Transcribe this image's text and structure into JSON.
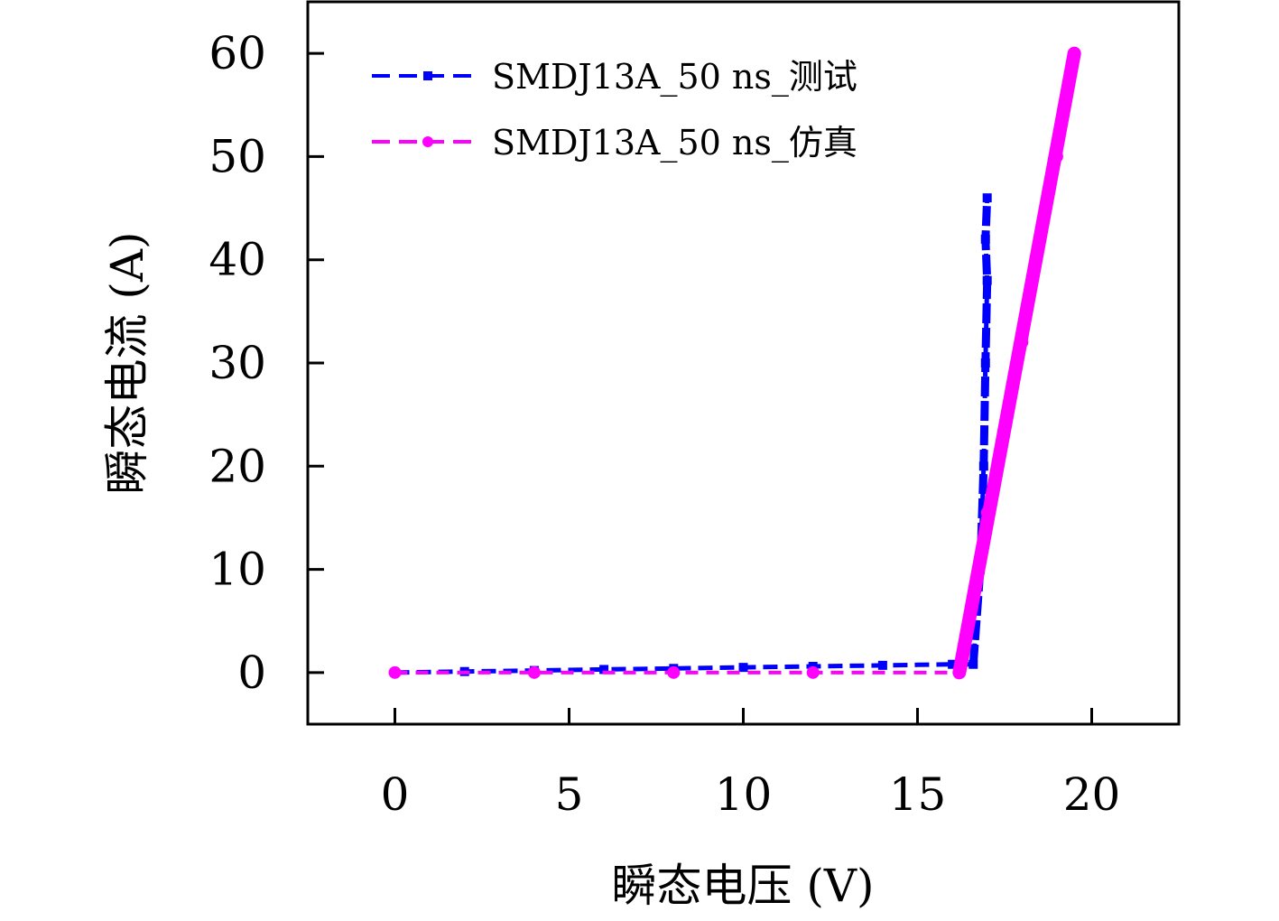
{
  "chart_data": {
    "type": "line",
    "title": "",
    "xlabel": "瞬态电压 (V)",
    "ylabel": "瞬态电流 (A)",
    "xlim": [
      -2.5,
      22.5
    ],
    "ylim": [
      -5,
      65
    ],
    "xticks": [
      0,
      5,
      10,
      15,
      20
    ],
    "yticks": [
      0,
      10,
      20,
      30,
      40,
      50,
      60
    ],
    "grid": false,
    "legend_position": "top-left",
    "series": [
      {
        "name": "SMDJ13A_50 ns_测试",
        "color": "#0000ff",
        "line_style": "dashed",
        "marker": "square",
        "x": [
          0,
          2,
          4,
          6,
          8,
          10,
          12,
          14,
          16,
          16.6,
          16.8,
          16.9,
          16.95,
          17.0,
          16.95,
          17.0
        ],
        "y": [
          0,
          0.1,
          0.2,
          0.3,
          0.4,
          0.5,
          0.6,
          0.7,
          0.8,
          0.8,
          10,
          20,
          30,
          38,
          42,
          46
        ]
      },
      {
        "name": "SMDJ13A_50 ns_仿真",
        "color": "#ff00ff",
        "line_style": "dashed",
        "marker": "circle",
        "x": [
          0,
          4,
          8,
          12,
          16.2,
          17,
          18,
          19,
          19.5
        ],
        "y": [
          0,
          0,
          0,
          0,
          0,
          15.5,
          32,
          50,
          60
        ]
      }
    ]
  },
  "colors": {
    "axis": "#000000",
    "background": "#ffffff"
  }
}
